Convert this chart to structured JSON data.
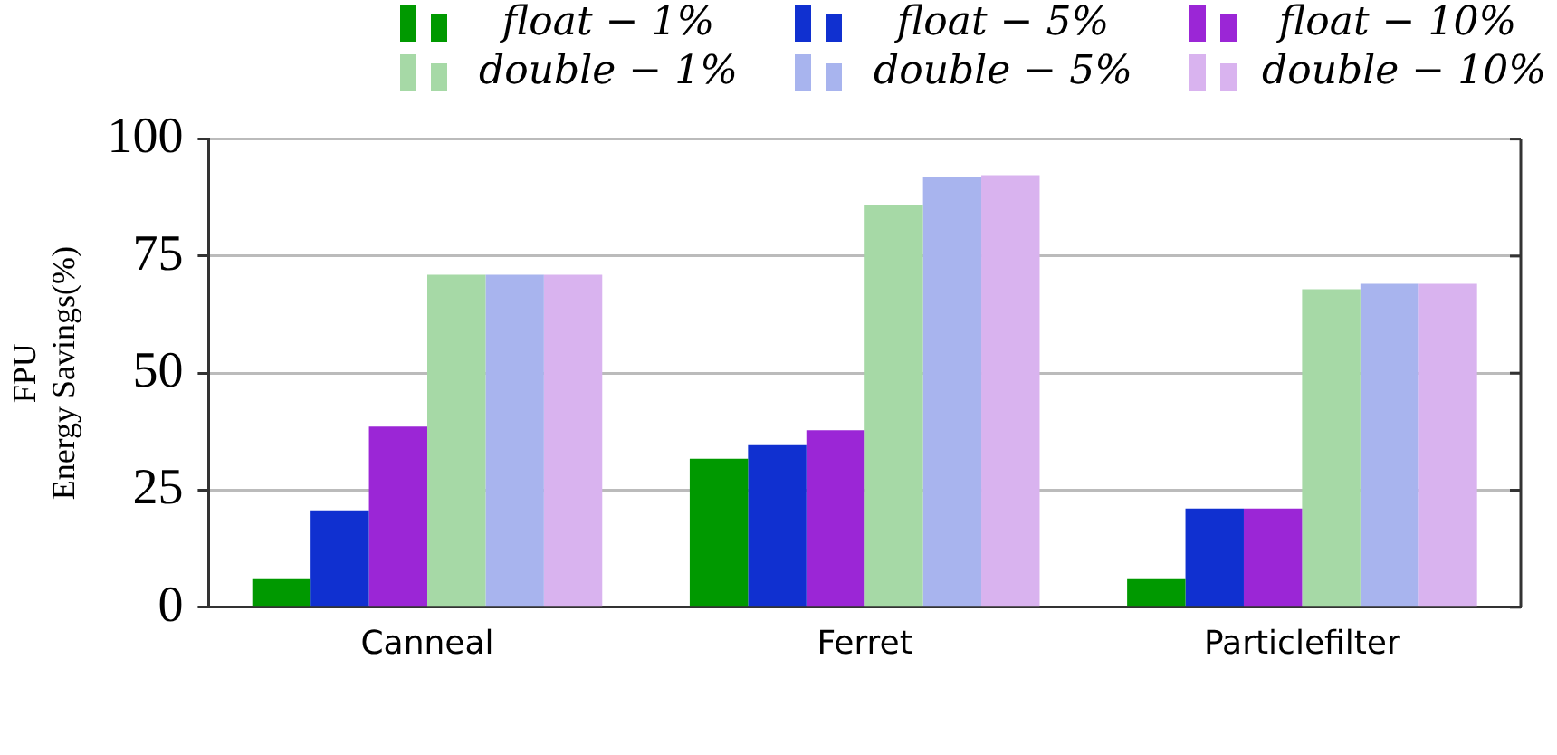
{
  "chart_data": {
    "type": "bar",
    "ylabel": "FPU\nEnergy Savings(%)",
    "categories": [
      "Canneal",
      "Ferret",
      "Particlefilter"
    ],
    "series": [
      {
        "name": "float − 1%",
        "color": "#009900",
        "values": [
          6,
          31.7,
          6
        ]
      },
      {
        "name": "float − 5%",
        "color": "#1030d0",
        "values": [
          20.7,
          34.6,
          21.1
        ]
      },
      {
        "name": "float − 10%",
        "color": "#9b26d6",
        "values": [
          38.6,
          37.8,
          21.1
        ]
      },
      {
        "name": "double − 1%",
        "color": "#a6d9a6",
        "values": [
          71,
          85.8,
          67.9
        ]
      },
      {
        "name": "double − 5%",
        "color": "#a8b4ee",
        "values": [
          71,
          91.9,
          69.1
        ]
      },
      {
        "name": "double − 10%",
        "color": "#d9b3ef",
        "values": [
          71,
          92.3,
          69.1
        ]
      }
    ],
    "ylim": [
      0,
      100
    ],
    "yticks": [
      0,
      25,
      50,
      75,
      100
    ],
    "grid": "y",
    "legend": "top"
  }
}
